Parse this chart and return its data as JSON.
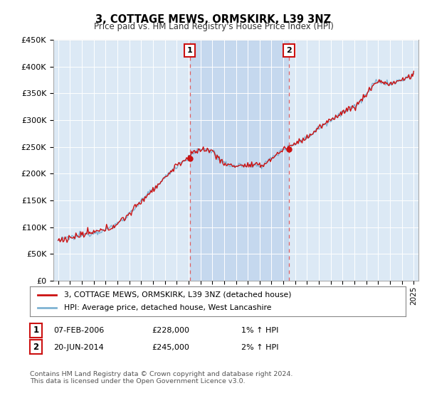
{
  "title": "3, COTTAGE MEWS, ORMSKIRK, L39 3NZ",
  "subtitle": "Price paid vs. HM Land Registry's House Price Index (HPI)",
  "ylim": [
    0,
    450000
  ],
  "yticks": [
    0,
    50000,
    100000,
    150000,
    200000,
    250000,
    300000,
    350000,
    400000,
    450000
  ],
  "ytick_labels": [
    "£0",
    "£50K",
    "£100K",
    "£150K",
    "£200K",
    "£250K",
    "£300K",
    "£350K",
    "£400K",
    "£450K"
  ],
  "sale1_date": 2006.1,
  "sale1_price": 228000,
  "sale1_label": "1",
  "sale1_text": "07-FEB-2006",
  "sale1_amount": "£228,000",
  "sale1_hpi": "1% ↑ HPI",
  "sale2_date": 2014.47,
  "sale2_price": 245000,
  "sale2_label": "2",
  "sale2_text": "20-JUN-2014",
  "sale2_amount": "£245,000",
  "sale2_hpi": "2% ↑ HPI",
  "hpi_color": "#7fb3d3",
  "price_color": "#cc1111",
  "vline_color": "#e06060",
  "plot_bg": "#dce9f5",
  "between_bg": "#c5d8ee",
  "legend_entry1": "3, COTTAGE MEWS, ORMSKIRK, L39 3NZ (detached house)",
  "legend_entry2": "HPI: Average price, detached house, West Lancashire",
  "footnote": "Contains HM Land Registry data © Crown copyright and database right 2024.\nThis data is licensed under the Open Government Licence v3.0.",
  "xlim_left": 1994.6,
  "xlim_right": 2025.4
}
